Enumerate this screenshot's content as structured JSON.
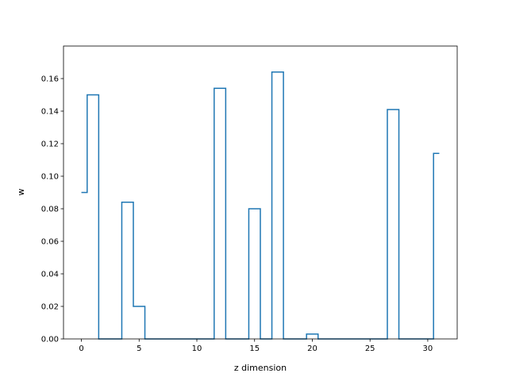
{
  "chart_data": {
    "type": "line",
    "drawstyle": "steps-mid",
    "title": "",
    "xlabel": "z dimension",
    "ylabel": "w",
    "xlim": [
      -1.55,
      32.55
    ],
    "ylim": [
      0,
      0.18
    ],
    "xticks": [
      0,
      5,
      10,
      15,
      20,
      25,
      30
    ],
    "yticks": [
      0.0,
      0.02,
      0.04,
      0.06,
      0.08,
      0.1,
      0.12,
      0.14,
      0.16
    ],
    "ytick_labels": [
      "0.00",
      "0.02",
      "0.04",
      "0.06",
      "0.08",
      "0.10",
      "0.12",
      "0.14",
      "0.16"
    ],
    "grid": false,
    "series": [
      {
        "color": "#1f77b4",
        "x": [
          0,
          1,
          2,
          3,
          4,
          5,
          6,
          7,
          8,
          9,
          10,
          11,
          12,
          13,
          14,
          15,
          16,
          17,
          18,
          19,
          20,
          21,
          22,
          23,
          24,
          25,
          26,
          27,
          28,
          29,
          30,
          31
        ],
        "values": [
          0.09,
          0.15,
          0,
          0,
          0.084,
          0.02,
          0,
          0,
          0,
          0,
          0,
          0,
          0.154,
          0,
          0,
          0.08,
          0,
          0.164,
          0,
          0,
          0.003,
          0,
          0,
          0,
          0,
          0,
          0,
          0.141,
          0,
          0,
          0,
          0.114
        ]
      }
    ]
  }
}
